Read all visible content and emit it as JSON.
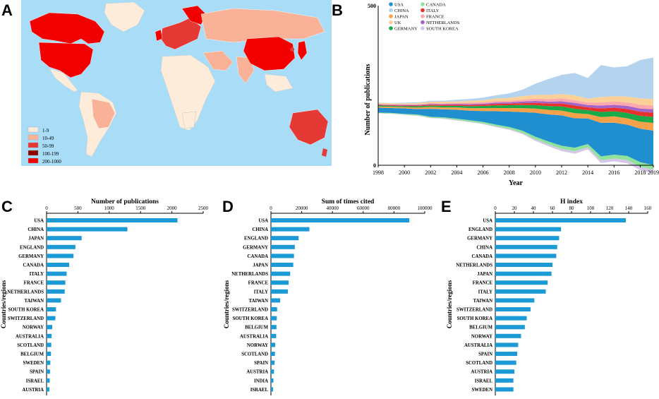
{
  "panels": {
    "a": "A",
    "b": "B",
    "c": "C",
    "d": "D",
    "e": "E"
  },
  "map_legend": {
    "title": "",
    "entries": [
      {
        "label": "1-9",
        "color": "#fdecd9"
      },
      {
        "label": "10-49",
        "color": "#f9b197"
      },
      {
        "label": "50-99",
        "color": "#e53935"
      },
      {
        "label": "100-199",
        "color": "#8b0000"
      },
      {
        "label": "200-1000",
        "color": "#f20000"
      }
    ],
    "ocean_color": "#a8dcf7"
  },
  "chart_data": [
    {
      "type": "area",
      "title": "",
      "xlabel": "Year",
      "ylabel": "Number of publications",
      "x_ticks": [
        "1998",
        "2000",
        "2002",
        "2004",
        "2006",
        "2008",
        "2010",
        "2012",
        "2014",
        "2016",
        "2018",
        "2019"
      ],
      "y_ticks": [
        "0",
        "500"
      ],
      "ylim": [
        0,
        500
      ],
      "years": [
        1998,
        1999,
        2000,
        2001,
        2002,
        2003,
        2004,
        2005,
        2006,
        2007,
        2008,
        2009,
        2010,
        2011,
        2012,
        2013,
        2014,
        2015,
        2016,
        2017,
        2018,
        2019
      ],
      "legend_position": "top",
      "series": [
        {
          "name": "USA",
          "color": "#1f8fcf",
          "values": [
            15,
            15,
            17,
            17,
            25,
            25,
            28,
            30,
            34,
            42,
            48,
            58,
            75,
            85,
            95,
            92,
            80,
            105,
            100,
            98,
            105,
            108
          ]
        },
        {
          "name": "CHINA",
          "color": "#b4d3ee",
          "values": [
            1,
            1,
            2,
            2,
            3,
            3,
            5,
            6,
            8,
            10,
            14,
            20,
            35,
            50,
            60,
            70,
            65,
            100,
            90,
            95,
            120,
            130
          ]
        },
        {
          "name": "JAPAN",
          "color": "#f7a24b",
          "values": [
            4,
            4,
            4,
            5,
            6,
            6,
            7,
            8,
            9,
            10,
            11,
            12,
            13,
            14,
            15,
            16,
            14,
            18,
            20,
            20,
            22,
            24
          ]
        },
        {
          "name": "UK",
          "color": "#fcd197",
          "values": [
            3,
            3,
            3,
            4,
            4,
            5,
            5,
            6,
            7,
            8,
            9,
            11,
            12,
            13,
            14,
            15,
            12,
            17,
            17,
            18,
            20,
            20
          ]
        },
        {
          "name": "GERMANY",
          "color": "#1aaa4a",
          "values": [
            3,
            3,
            3,
            4,
            4,
            5,
            5,
            6,
            7,
            8,
            9,
            10,
            11,
            12,
            13,
            14,
            12,
            16,
            16,
            17,
            18,
            19
          ]
        },
        {
          "name": "CANADA",
          "color": "#8fe39a",
          "values": [
            2,
            2,
            2,
            3,
            3,
            3,
            4,
            4,
            5,
            5,
            6,
            7,
            8,
            9,
            10,
            11,
            10,
            12,
            12,
            13,
            14,
            14
          ]
        },
        {
          "name": "ITALY",
          "color": "#e8312a",
          "values": [
            2,
            2,
            2,
            2,
            3,
            3,
            3,
            4,
            4,
            5,
            5,
            6,
            7,
            8,
            9,
            10,
            9,
            11,
            11,
            12,
            13,
            13
          ]
        },
        {
          "name": "FRANCE",
          "color": "#fba9ad",
          "values": [
            2,
            2,
            2,
            2,
            3,
            3,
            3,
            4,
            4,
            5,
            5,
            6,
            7,
            8,
            9,
            9,
            8,
            10,
            10,
            11,
            12,
            12
          ]
        },
        {
          "name": "NETHERLANDS",
          "color": "#a363c8",
          "values": [
            1,
            1,
            2,
            2,
            2,
            2,
            3,
            3,
            3,
            4,
            4,
            5,
            6,
            6,
            7,
            8,
            7,
            9,
            9,
            10,
            10,
            11
          ]
        },
        {
          "name": "SOUTH KOREA",
          "color": "#d6c7e8",
          "values": [
            1,
            1,
            1,
            1,
            1,
            2,
            2,
            2,
            2,
            3,
            3,
            4,
            5,
            6,
            7,
            8,
            7,
            9,
            9,
            10,
            11,
            12
          ]
        }
      ]
    },
    {
      "type": "bar",
      "title": "Number of publications",
      "ylabel": "Countries/regions",
      "xlim": [
        0,
        2500
      ],
      "x_ticks": [
        "0",
        "500",
        "1000",
        "1500",
        "2000",
        "2500"
      ],
      "categories": [
        "USA",
        "CHINA",
        "JAPAN",
        "ENGLAND",
        "GERMANY",
        "CANADA",
        "ITALY",
        "FRANCE",
        "NETHERLANDS",
        "TAIWAN",
        "SOUTH KOREA",
        "SWITZERLAND",
        "NORWAY",
        "AUSTRALIA",
        "SCOTLAND",
        "BELGIUM",
        "SWEDEN",
        "SPAIN",
        "ISRAEL",
        "AUSTRIA"
      ],
      "values": [
        2090,
        1290,
        560,
        460,
        430,
        360,
        320,
        300,
        290,
        230,
        150,
        140,
        90,
        80,
        75,
        70,
        60,
        55,
        50,
        45
      ]
    },
    {
      "type": "bar",
      "title": "Sum of times cited",
      "ylabel": "Countries/regions",
      "xlim": [
        0,
        100000
      ],
      "x_ticks": [
        "0",
        "20000",
        "40000",
        "60000",
        "80000",
        "100000"
      ],
      "categories": [
        "USA",
        "CHINA",
        "ENGLAND",
        "GERMANY",
        "CANADA",
        "JAPAN",
        "NETHERLANDS",
        "FRANCE",
        "ITALY",
        "TAIWAN",
        "SWITZERLAND",
        "SOUTH KOREA",
        "BELGIUM",
        "AUSTRALIA",
        "NORWAY",
        "SCOTLAND",
        "SPAIN",
        "AUSTRIA",
        "INDIA",
        "ISRAEL"
      ],
      "values": [
        90000,
        25000,
        18000,
        15500,
        15000,
        14500,
        12500,
        11500,
        11000,
        6000,
        4000,
        3800,
        3600,
        3400,
        2800,
        2600,
        2400,
        2000,
        1600,
        1400
      ]
    },
    {
      "type": "bar",
      "title": "H index",
      "ylabel": "Countries/regions",
      "xlim": [
        0,
        160
      ],
      "x_ticks": [
        "0",
        "20",
        "40",
        "60",
        "80",
        "100",
        "120",
        "140",
        "160"
      ],
      "categories": [
        "USA",
        "ENGLAND",
        "GERMANY",
        "CHINA",
        "CANADA",
        "NETHERLANDS",
        "JAPAN",
        "FRANCE",
        "ITALY",
        "TAIWAN",
        "SWITZERLAND",
        "SOUTH KOREA",
        "BELGIUM",
        "NORWAY",
        "AUSTRALIA",
        "SPAIN",
        "SCOTLAND",
        "AUSTRIA",
        "ISRAEL",
        "SWEDEN"
      ],
      "values": [
        137,
        69,
        67,
        65,
        64,
        60,
        59,
        55,
        53,
        41,
        37,
        33,
        31,
        27,
        24,
        23,
        22,
        20,
        19,
        19
      ]
    }
  ]
}
